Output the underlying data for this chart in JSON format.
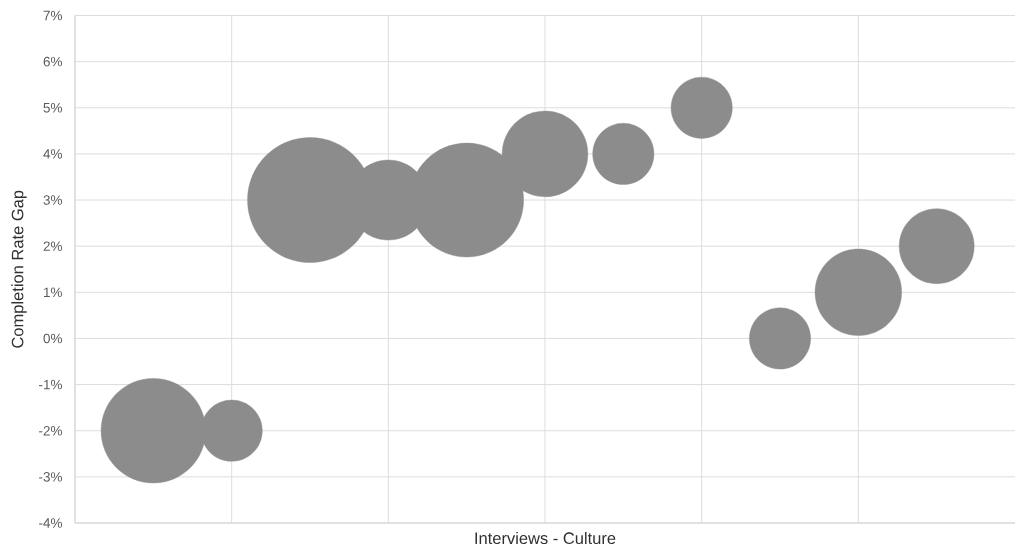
{
  "chart_data": {
    "type": "bubble",
    "xlabel": "Interviews - Culture",
    "ylabel": "Completion Rate Gap",
    "categories": [
      null,
      null,
      null,
      null,
      null,
      null,
      null,
      null,
      null,
      null,
      null
    ],
    "values": [
      -2,
      -2,
      3,
      3,
      3,
      4,
      4,
      5,
      0,
      1,
      2
    ],
    "sizes": [
      0.7,
      0.24,
      1,
      0.41,
      0.83,
      0.47,
      0.24,
      0.24,
      0.24,
      0.48,
      0.36
    ],
    "color": "#8c8c8c",
    "ylim": [
      -4,
      7
    ],
    "yticks": [
      {
        "value": -4,
        "label": "-4%"
      },
      {
        "value": -3,
        "label": "-3%"
      },
      {
        "value": -2,
        "label": "-2%"
      },
      {
        "value": -1,
        "label": "-1%"
      },
      {
        "value": 0,
        "label": "0%"
      },
      {
        "value": 1,
        "label": "1%"
      },
      {
        "value": 2,
        "label": "2%"
      },
      {
        "value": 3,
        "label": "3%"
      },
      {
        "value": 4,
        "label": "4%"
      },
      {
        "value": 5,
        "label": "5%"
      },
      {
        "value": 6,
        "label": "6%"
      },
      {
        "value": 7,
        "label": "7%"
      }
    ],
    "tick_labels": "y",
    "grid": true
  }
}
